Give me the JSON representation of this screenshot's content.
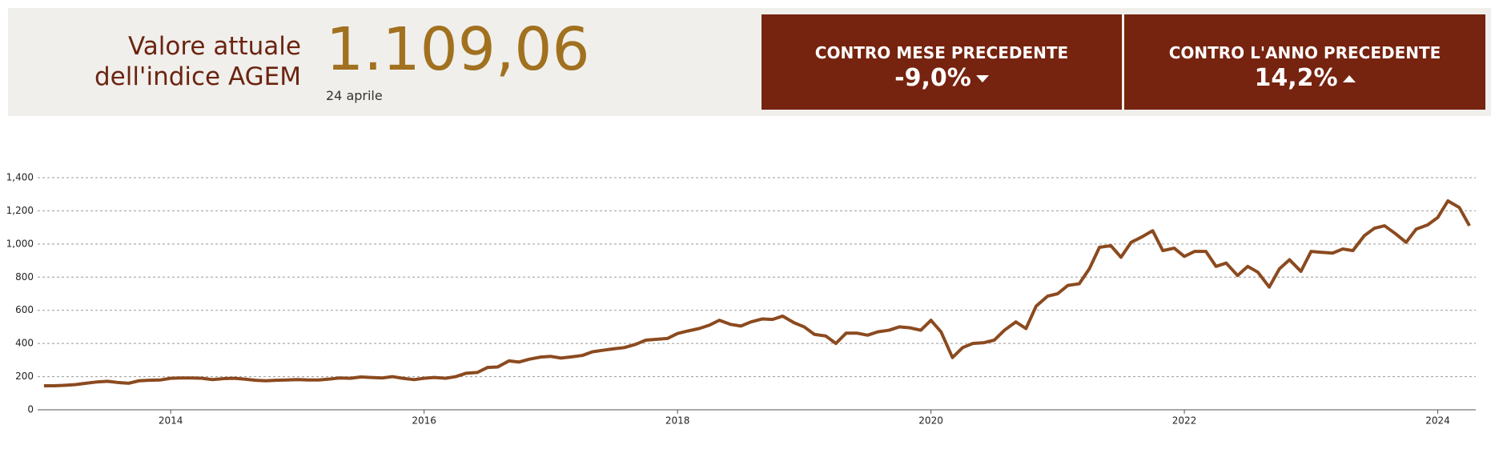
{
  "header": {
    "title_lines": [
      "Valore attuale",
      "dell'indice AGEM"
    ],
    "value": "1.109,06",
    "date": "24 aprile",
    "cards": [
      {
        "label": "CONTRO MESE PRECEDENTE",
        "value": "-9,0%"
      },
      {
        "label": "CONTRO L'ANNO PRECEDENTE",
        "value": "14,2%"
      }
    ]
  },
  "chart_data": {
    "type": "line",
    "color": "#8b4a1f",
    "grid": true,
    "x": [
      2013.0,
      2013.08,
      2013.17,
      2013.25,
      2013.33,
      2013.42,
      2013.5,
      2013.58,
      2013.67,
      2013.75,
      2013.83,
      2013.92,
      2014.0,
      2014.08,
      2014.17,
      2014.25,
      2014.33,
      2014.42,
      2014.5,
      2014.58,
      2014.67,
      2014.75,
      2014.83,
      2014.92,
      2015.0,
      2015.08,
      2015.17,
      2015.25,
      2015.33,
      2015.42,
      2015.5,
      2015.58,
      2015.67,
      2015.75,
      2015.83,
      2015.92,
      2016.0,
      2016.08,
      2016.17,
      2016.25,
      2016.33,
      2016.42,
      2016.5,
      2016.58,
      2016.67,
      2016.75,
      2016.83,
      2016.92,
      2017.0,
      2017.08,
      2017.17,
      2017.25,
      2017.33,
      2017.42,
      2017.5,
      2017.58,
      2017.67,
      2017.75,
      2017.83,
      2017.92,
      2018.0,
      2018.08,
      2018.17,
      2018.25,
      2018.33,
      2018.42,
      2018.5,
      2018.58,
      2018.67,
      2018.75,
      2018.83,
      2018.92,
      2019.0,
      2019.08,
      2019.17,
      2019.25,
      2019.33,
      2019.42,
      2019.5,
      2019.58,
      2019.67,
      2019.75,
      2019.83,
      2019.92,
      2020.0,
      2020.08,
      2020.17,
      2020.25,
      2020.33,
      2020.42,
      2020.5,
      2020.58,
      2020.67,
      2020.75,
      2020.83,
      2020.92,
      2021.0,
      2021.08,
      2021.17,
      2021.25,
      2021.33,
      2021.42,
      2021.5,
      2021.58,
      2021.67,
      2021.75,
      2021.83,
      2021.92,
      2022.0,
      2022.08,
      2022.17,
      2022.25,
      2022.33,
      2022.42,
      2022.5,
      2022.58,
      2022.67,
      2022.75,
      2022.83,
      2022.92,
      2023.0,
      2023.08,
      2023.17,
      2023.25,
      2023.33,
      2023.42,
      2023.5,
      2023.58,
      2023.67,
      2023.75,
      2023.83,
      2023.92,
      2024.0,
      2024.08,
      2024.17,
      2024.25
    ],
    "values": [
      145,
      145,
      148,
      152,
      160,
      168,
      172,
      165,
      160,
      175,
      178,
      180,
      190,
      192,
      192,
      190,
      182,
      188,
      190,
      185,
      178,
      175,
      178,
      180,
      182,
      180,
      180,
      185,
      192,
      190,
      198,
      195,
      192,
      200,
      190,
      182,
      190,
      195,
      190,
      200,
      220,
      225,
      255,
      258,
      295,
      288,
      305,
      318,
      322,
      312,
      320,
      328,
      350,
      360,
      368,
      375,
      395,
      420,
      425,
      430,
      460,
      475,
      490,
      510,
      540,
      515,
      505,
      530,
      548,
      545,
      565,
      525,
      500,
      455,
      445,
      400,
      462,
      462,
      450,
      470,
      480,
      500,
      495,
      480,
      540,
      470,
      315,
      375,
      400,
      405,
      420,
      480,
      530,
      490,
      625,
      685,
      700,
      750,
      760,
      850,
      980,
      990,
      920,
      1010,
      1045,
      1080,
      960,
      975,
      925,
      955,
      955,
      865,
      885,
      810,
      865,
      830,
      740,
      850,
      905,
      835,
      955,
      950,
      945,
      970,
      960,
      1050,
      1095,
      1110,
      1060,
      1010,
      1090,
      1115,
      1160,
      1260,
      1220,
      1110
    ],
    "xlim": [
      2012.95,
      2024.3
    ],
    "xticks": [
      2014,
      2016,
      2018,
      2020,
      2022,
      2024
    ],
    "ylim": [
      0,
      1400
    ],
    "yticks": [
      0,
      200,
      400,
      600,
      800,
      {
        "value": 1000,
        "label": "1,000"
      },
      {
        "value": 1200,
        "label": "1,200"
      },
      {
        "value": 1400,
        "label": "1,400"
      }
    ]
  }
}
